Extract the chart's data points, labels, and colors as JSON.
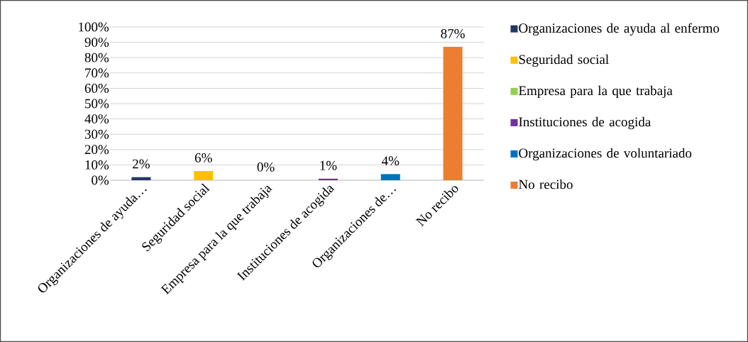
{
  "chart_data": {
    "type": "bar",
    "categories": [
      "Organizaciones de ayuda…",
      "Seguridad social",
      "Empresa para la que trabaja",
      "Instituciones de acogida",
      "Organizaciones de…",
      "No recibo"
    ],
    "series": [
      {
        "name": "Organizaciones de ayuda al enfermo",
        "color": "#203864",
        "values": [
          2,
          null,
          null,
          null,
          null,
          null
        ],
        "value_labels": [
          "2%",
          null,
          null,
          null,
          null,
          null
        ]
      },
      {
        "name": "Seguridad social",
        "color": "#ffc000",
        "values": [
          null,
          6,
          null,
          null,
          null,
          null
        ],
        "value_labels": [
          null,
          "6%",
          null,
          null,
          null,
          null
        ]
      },
      {
        "name": "Empresa para la que trabaja",
        "color": "#92d050",
        "values": [
          null,
          null,
          0,
          null,
          null,
          null
        ],
        "value_labels": [
          null,
          null,
          "0%",
          null,
          null,
          null
        ]
      },
      {
        "name": "Instituciones de acogida",
        "color": "#7030a0",
        "values": [
          null,
          null,
          null,
          1,
          null,
          null
        ],
        "value_labels": [
          null,
          null,
          null,
          "1%",
          null,
          null
        ]
      },
      {
        "name": "Organizaciones de voluntariado",
        "color": "#0070c0",
        "values": [
          null,
          null,
          null,
          null,
          4,
          null
        ],
        "value_labels": [
          null,
          null,
          null,
          null,
          "4%",
          null
        ]
      },
      {
        "name": "No recibo",
        "color": "#ed7d31",
        "values": [
          null,
          null,
          null,
          null,
          null,
          87
        ],
        "value_labels": [
          null,
          null,
          null,
          null,
          null,
          "87%"
        ]
      }
    ],
    "ylim": [
      0,
      100
    ],
    "yticks": [
      {
        "value": 0,
        "label": "0%"
      },
      {
        "value": 10,
        "label": "10%"
      },
      {
        "value": 20,
        "label": "20%"
      },
      {
        "value": 30,
        "label": "30%"
      },
      {
        "value": 40,
        "label": "40%"
      },
      {
        "value": 50,
        "label": "50%"
      },
      {
        "value": 60,
        "label": "60%"
      },
      {
        "value": 70,
        "label": "70%"
      },
      {
        "value": 80,
        "label": "80%"
      },
      {
        "value": 90,
        "label": "90%"
      },
      {
        "value": 100,
        "label": "100%"
      }
    ],
    "grid": "y",
    "legend": "right"
  }
}
